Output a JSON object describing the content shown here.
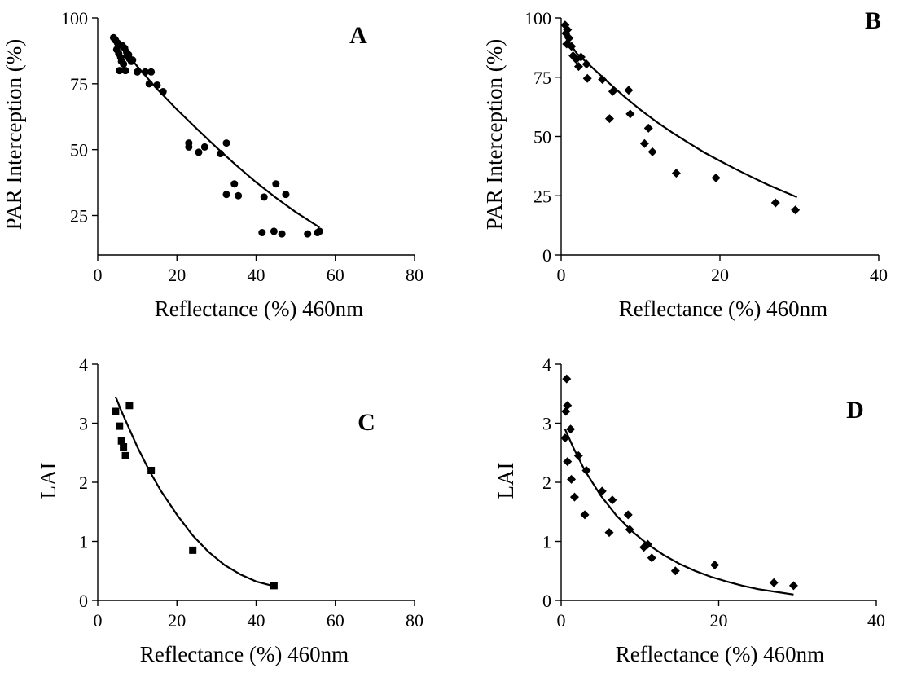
{
  "chart_data": [
    {
      "id": "A",
      "type": "scatter",
      "panel_label": "A",
      "marker": "circle",
      "xlabel": "Reflectance (%) 460nm",
      "ylabel": "PAR Interception (%)",
      "xlim": [
        0,
        80
      ],
      "ylim": [
        10,
        100
      ],
      "xticks": [
        0,
        20,
        40,
        60,
        80
      ],
      "yticks": [
        25,
        50,
        75,
        100
      ],
      "points": [
        [
          4.0,
          92.5
        ],
        [
          4.5,
          91.5
        ],
        [
          5.0,
          90.5
        ],
        [
          4.8,
          88.0
        ],
        [
          5.3,
          86.5
        ],
        [
          5.8,
          85.0
        ],
        [
          6.0,
          83.5
        ],
        [
          6.5,
          82.5
        ],
        [
          5.5,
          80.0
        ],
        [
          7.0,
          80.0
        ],
        [
          6.2,
          89.5
        ],
        [
          6.8,
          88.5
        ],
        [
          7.3,
          87.0
        ],
        [
          7.8,
          86.0
        ],
        [
          8.0,
          84.5
        ],
        [
          8.5,
          83.5
        ],
        [
          7.5,
          85.5
        ],
        [
          8.8,
          84.0
        ],
        [
          10.0,
          79.5
        ],
        [
          12.0,
          79.5
        ],
        [
          13.5,
          79.5
        ],
        [
          13.0,
          75.0
        ],
        [
          15.0,
          74.5
        ],
        [
          16.5,
          72.0
        ],
        [
          23.0,
          52.5
        ],
        [
          23.0,
          51.0
        ],
        [
          25.5,
          49.0
        ],
        [
          27.0,
          51.0
        ],
        [
          31.0,
          48.5
        ],
        [
          32.5,
          52.5
        ],
        [
          32.5,
          33.0
        ],
        [
          34.5,
          37.0
        ],
        [
          35.5,
          32.5
        ],
        [
          41.5,
          18.5
        ],
        [
          42.0,
          32.0
        ],
        [
          44.5,
          19.0
        ],
        [
          45.0,
          37.0
        ],
        [
          46.5,
          18.0
        ],
        [
          47.5,
          33.0
        ],
        [
          53.0,
          18.0
        ],
        [
          55.5,
          18.5
        ],
        [
          56.0,
          19.0
        ]
      ],
      "fit": [
        [
          6,
          89
        ],
        [
          10,
          81.6
        ],
        [
          15,
          73
        ],
        [
          20,
          65.2
        ],
        [
          25,
          57.9
        ],
        [
          30,
          50.8
        ],
        [
          35,
          44
        ],
        [
          40,
          37.6
        ],
        [
          45,
          31.7
        ],
        [
          50,
          26.3
        ],
        [
          56,
          20.5
        ]
      ]
    },
    {
      "id": "B",
      "type": "scatter",
      "panel_label": "B",
      "marker": "diamond",
      "xlabel": "Reflectance (%) 460nm",
      "ylabel": "PAR Interception (%)",
      "xlim": [
        0,
        40
      ],
      "ylim": [
        0,
        100
      ],
      "xticks": [
        0,
        20,
        40
      ],
      "yticks": [
        0,
        25,
        50,
        75,
        100
      ],
      "points": [
        [
          0.5,
          97.0
        ],
        [
          0.8,
          95.0
        ],
        [
          0.6,
          93.5
        ],
        [
          1.0,
          91.5
        ],
        [
          0.7,
          89.0
        ],
        [
          1.3,
          88.0
        ],
        [
          1.5,
          84.0
        ],
        [
          1.9,
          82.5
        ],
        [
          2.2,
          79.5
        ],
        [
          2.5,
          83.5
        ],
        [
          3.2,
          80.5
        ],
        [
          3.3,
          74.5
        ],
        [
          5.2,
          74.0
        ],
        [
          6.5,
          69.0
        ],
        [
          8.5,
          69.5
        ],
        [
          8.7,
          59.5
        ],
        [
          6.1,
          57.5
        ],
        [
          10.5,
          47.0
        ],
        [
          11.0,
          53.5
        ],
        [
          11.5,
          43.5
        ],
        [
          14.5,
          34.5
        ],
        [
          19.5,
          32.5
        ],
        [
          27.0,
          22.0
        ],
        [
          29.5,
          19.0
        ]
      ],
      "fit": [
        [
          0.5,
          92
        ],
        [
          2,
          84.9
        ],
        [
          4,
          78.8
        ],
        [
          6,
          72.6
        ],
        [
          8,
          66.7
        ],
        [
          10,
          61.2
        ],
        [
          12,
          56.2
        ],
        [
          14,
          51.6
        ],
        [
          16,
          47.4
        ],
        [
          18,
          43.3
        ],
        [
          20,
          39.7
        ],
        [
          22,
          36.2
        ],
        [
          24,
          32.9
        ],
        [
          26,
          29.7
        ],
        [
          28,
          26.8
        ],
        [
          29.7,
          24.4
        ]
      ]
    },
    {
      "id": "C",
      "type": "scatter",
      "panel_label": "C",
      "marker": "square",
      "xlabel": "Reflectance (%) 460nm",
      "ylabel": "LAI",
      "xlim": [
        0,
        80
      ],
      "ylim": [
        0,
        4
      ],
      "xticks": [
        0,
        20,
        40,
        60,
        80
      ],
      "yticks": [
        0,
        1,
        2,
        3,
        4
      ],
      "points": [
        [
          4.5,
          3.2
        ],
        [
          5.5,
          2.95
        ],
        [
          6.0,
          2.7
        ],
        [
          6.5,
          2.6
        ],
        [
          7.0,
          2.45
        ],
        [
          8.0,
          3.3
        ],
        [
          13.5,
          2.2
        ],
        [
          24.0,
          0.85
        ],
        [
          44.5,
          0.25
        ]
      ],
      "fit": [
        [
          4.5,
          3.45
        ],
        [
          6,
          3.2
        ],
        [
          8,
          2.9
        ],
        [
          10,
          2.6
        ],
        [
          13,
          2.2
        ],
        [
          16,
          1.85
        ],
        [
          20,
          1.45
        ],
        [
          24,
          1.1
        ],
        [
          28,
          0.82
        ],
        [
          32,
          0.6
        ],
        [
          36,
          0.44
        ],
        [
          40,
          0.32
        ],
        [
          44.5,
          0.24
        ]
      ]
    },
    {
      "id": "D",
      "type": "scatter",
      "panel_label": "D",
      "marker": "diamond",
      "xlabel": "Reflectance (%) 460nm",
      "ylabel": "LAI",
      "xlim": [
        0,
        40
      ],
      "ylim": [
        0,
        4
      ],
      "xticks": [
        0,
        20,
        40
      ],
      "yticks": [
        0,
        1,
        2,
        3,
        4
      ],
      "points": [
        [
          0.7,
          3.75
        ],
        [
          0.8,
          3.3
        ],
        [
          0.6,
          3.2
        ],
        [
          0.5,
          2.75
        ],
        [
          1.2,
          2.9
        ],
        [
          0.8,
          2.35
        ],
        [
          1.3,
          2.05
        ],
        [
          1.7,
          1.75
        ],
        [
          2.2,
          2.45
        ],
        [
          3.2,
          2.2
        ],
        [
          3.0,
          1.45
        ],
        [
          5.2,
          1.85
        ],
        [
          6.5,
          1.7
        ],
        [
          6.1,
          1.15
        ],
        [
          8.5,
          1.45
        ],
        [
          8.7,
          1.2
        ],
        [
          10.5,
          0.9
        ],
        [
          11.0,
          0.95
        ],
        [
          11.5,
          0.72
        ],
        [
          14.5,
          0.5
        ],
        [
          19.5,
          0.6
        ],
        [
          27.0,
          0.3
        ],
        [
          29.5,
          0.25
        ]
      ],
      "fit": [
        [
          0.5,
          2.9
        ],
        [
          1.5,
          2.6
        ],
        [
          3,
          2.2
        ],
        [
          5,
          1.78
        ],
        [
          7,
          1.44
        ],
        [
          9,
          1.17
        ],
        [
          11,
          0.95
        ],
        [
          13,
          0.77
        ],
        [
          15,
          0.62
        ],
        [
          17,
          0.5
        ],
        [
          19,
          0.4
        ],
        [
          21,
          0.32
        ],
        [
          23,
          0.25
        ],
        [
          25,
          0.19
        ],
        [
          27,
          0.15
        ],
        [
          29.5,
          0.1
        ]
      ]
    }
  ]
}
